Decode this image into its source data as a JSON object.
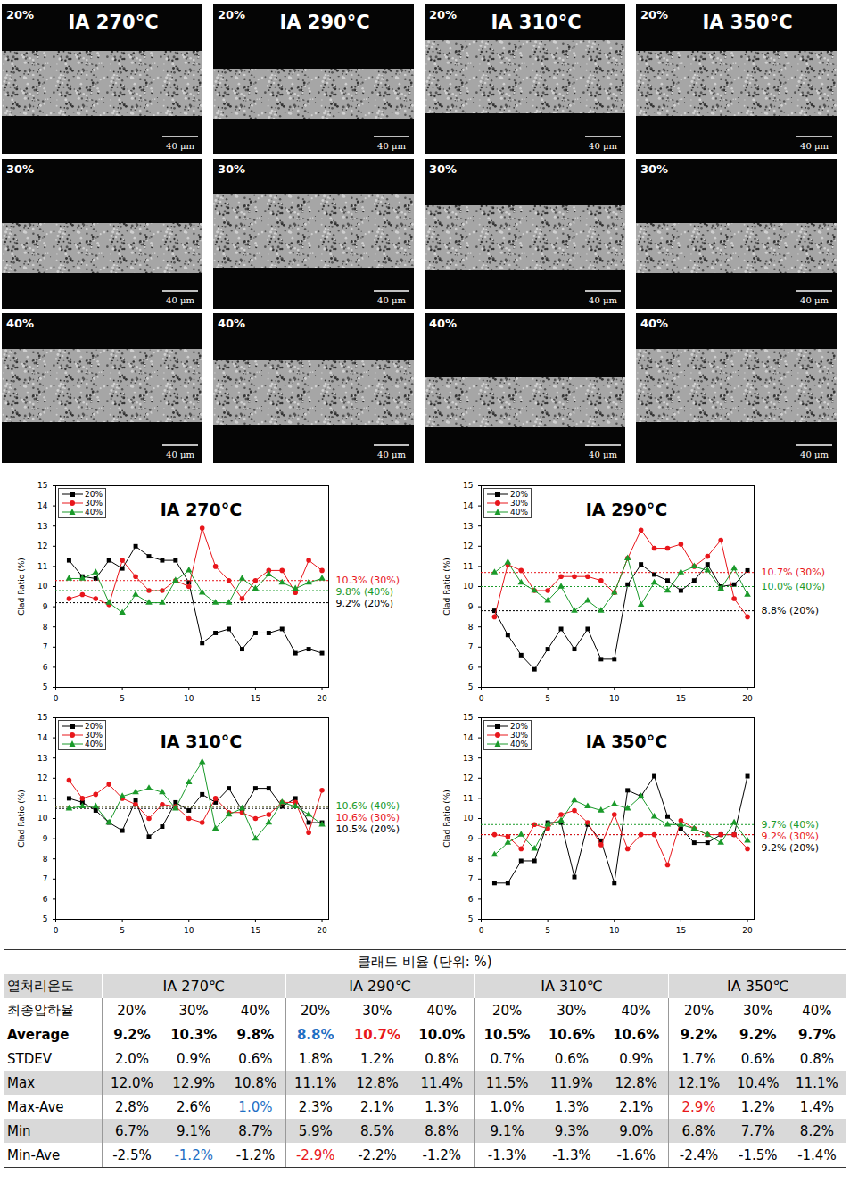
{
  "micrographs": {
    "columns": [
      {
        "title": "IA 270°C",
        "panels": [
          {
            "label": "20%",
            "scale_bar": "40 μm"
          },
          {
            "label": "30%",
            "scale_bar": "40 μm"
          },
          {
            "label": "40%",
            "scale_bar": "40 μm"
          }
        ]
      },
      {
        "title": "IA 290°C",
        "panels": [
          {
            "label": "20%",
            "scale_bar": "40 μm"
          },
          {
            "label": "30%",
            "scale_bar": "40 μm"
          },
          {
            "label": "40%",
            "scale_bar": "40 μm"
          }
        ]
      },
      {
        "title": "IA 310°C",
        "panels": [
          {
            "label": "20%",
            "scale_bar": "40 μm"
          },
          {
            "label": "30%",
            "scale_bar": "40 μm"
          },
          {
            "label": "40%",
            "scale_bar": "40 μm"
          }
        ]
      },
      {
        "title": "IA 350°C",
        "panels": [
          {
            "label": "20%",
            "scale_bar": "40 μm"
          },
          {
            "label": "30%",
            "scale_bar": "40 μm"
          },
          {
            "label": "40%",
            "scale_bar": "40 μm"
          }
        ]
      }
    ]
  },
  "chart_data": [
    {
      "type": "line",
      "title": "IA 270°C",
      "y_label": "Clad Ratio (%)",
      "legend": "top-left",
      "x": [
        1,
        2,
        3,
        4,
        5,
        6,
        7,
        8,
        9,
        10,
        11,
        12,
        13,
        14,
        15,
        16,
        17,
        18,
        19,
        20
      ],
      "xlim": [
        0,
        20.5
      ],
      "xticks": [
        0,
        5,
        10,
        15,
        20
      ],
      "ylim": [
        5,
        15
      ],
      "yticks": [
        5,
        6,
        7,
        8,
        9,
        10,
        11,
        12,
        13,
        14,
        15
      ],
      "series": [
        {
          "name": "20%",
          "color": "#000000",
          "marker": "square",
          "values": [
            11.3,
            10.5,
            10.4,
            11.3,
            10.9,
            12.0,
            11.5,
            11.3,
            11.3,
            10.2,
            7.2,
            7.7,
            7.9,
            6.9,
            7.7,
            7.7,
            7.9,
            6.7,
            6.9,
            6.7
          ],
          "average": 9.2,
          "average_label": "9.2% (20%)"
        },
        {
          "name": "30%",
          "color": "#e8161b",
          "marker": "circle",
          "values": [
            9.4,
            9.6,
            9.4,
            9.1,
            11.3,
            10.5,
            9.8,
            9.8,
            10.3,
            10.0,
            12.9,
            11.0,
            10.3,
            9.4,
            10.3,
            10.8,
            10.8,
            9.7,
            11.3,
            10.8
          ],
          "average": 10.3,
          "average_label": "10.3% (30%)"
        },
        {
          "name": "40%",
          "color": "#1a9a2a",
          "marker": "triangle",
          "values": [
            10.4,
            10.4,
            10.7,
            9.2,
            8.7,
            9.6,
            9.2,
            9.2,
            10.3,
            10.8,
            9.7,
            9.2,
            9.2,
            10.4,
            9.9,
            10.6,
            10.2,
            9.9,
            10.2,
            10.4
          ],
          "average": 9.8,
          "average_label": "9.8% (40%)"
        }
      ]
    },
    {
      "type": "line",
      "title": "IA 290°C",
      "y_label": "Clad Ratio (%)",
      "legend": "top-left",
      "x": [
        1,
        2,
        3,
        4,
        5,
        6,
        7,
        8,
        9,
        10,
        11,
        12,
        13,
        14,
        15,
        16,
        17,
        18,
        19,
        20
      ],
      "xlim": [
        0,
        20.5
      ],
      "xticks": [
        0,
        5,
        10,
        15,
        20
      ],
      "ylim": [
        5,
        15
      ],
      "yticks": [
        5,
        6,
        7,
        8,
        9,
        10,
        11,
        12,
        13,
        14,
        15
      ],
      "series": [
        {
          "name": "20%",
          "color": "#000000",
          "marker": "square",
          "values": [
            8.8,
            7.6,
            6.6,
            5.9,
            6.9,
            7.9,
            6.9,
            7.9,
            6.4,
            6.4,
            10.1,
            11.1,
            10.6,
            10.3,
            9.8,
            10.3,
            11.1,
            10.0,
            10.1,
            10.8
          ],
          "average": 8.8,
          "average_label": "8.8% (20%)"
        },
        {
          "name": "30%",
          "color": "#e8161b",
          "marker": "circle",
          "values": [
            8.5,
            11.1,
            10.8,
            9.8,
            9.8,
            10.5,
            10.5,
            10.5,
            10.3,
            9.7,
            11.4,
            12.8,
            11.9,
            11.9,
            12.1,
            11.0,
            11.5,
            12.3,
            9.4,
            8.5
          ],
          "average": 10.7,
          "average_label": "10.7% (30%)"
        },
        {
          "name": "40%",
          "color": "#1a9a2a",
          "marker": "triangle",
          "values": [
            10.7,
            11.2,
            10.2,
            9.8,
            9.3,
            10.0,
            8.8,
            9.3,
            8.8,
            9.7,
            11.4,
            9.1,
            10.2,
            9.8,
            10.7,
            11.0,
            10.8,
            9.9,
            10.9,
            9.6
          ],
          "average": 10.0,
          "average_label": "10.0% (40%)"
        }
      ]
    },
    {
      "type": "line",
      "title": "IA 310°C",
      "y_label": "Clad Ratio (%)",
      "legend": "top-left",
      "x": [
        1,
        2,
        3,
        4,
        5,
        6,
        7,
        8,
        9,
        10,
        11,
        12,
        13,
        14,
        15,
        16,
        17,
        18,
        19,
        20
      ],
      "xlim": [
        0,
        20.5
      ],
      "xticks": [
        0,
        5,
        10,
        15,
        20
      ],
      "ylim": [
        5,
        15
      ],
      "yticks": [
        5,
        6,
        7,
        8,
        9,
        10,
        11,
        12,
        13,
        14,
        15
      ],
      "series": [
        {
          "name": "20%",
          "color": "#000000",
          "marker": "square",
          "values": [
            11.0,
            10.8,
            10.4,
            9.8,
            9.4,
            10.9,
            9.1,
            9.6,
            10.8,
            10.4,
            11.2,
            10.8,
            11.5,
            10.4,
            11.5,
            11.5,
            10.6,
            11.0,
            9.8,
            9.8
          ],
          "average": 10.5,
          "average_label": "10.5% (20%)"
        },
        {
          "name": "30%",
          "color": "#e8161b",
          "marker": "circle",
          "values": [
            11.9,
            11.0,
            11.2,
            11.7,
            11.0,
            10.7,
            10.0,
            10.7,
            10.6,
            10.0,
            9.8,
            11.0,
            10.3,
            10.3,
            10.0,
            10.2,
            10.8,
            10.8,
            9.3,
            11.4
          ],
          "average": 10.6,
          "average_label": "10.6% (30%)"
        },
        {
          "name": "40%",
          "color": "#1a9a2a",
          "marker": "triangle",
          "values": [
            10.5,
            10.6,
            10.6,
            9.8,
            11.1,
            11.3,
            11.5,
            11.3,
            10.5,
            11.8,
            12.8,
            9.5,
            10.2,
            10.5,
            9.0,
            9.8,
            10.8,
            10.6,
            10.2,
            9.7
          ],
          "average": 10.6,
          "average_label": "10.6% (40%)"
        }
      ]
    },
    {
      "type": "line",
      "title": "IA 350°C",
      "y_label": "Clad Ratio (%)",
      "legend": "top-left",
      "x": [
        1,
        2,
        3,
        4,
        5,
        6,
        7,
        8,
        9,
        10,
        11,
        12,
        13,
        14,
        15,
        16,
        17,
        18,
        19,
        20
      ],
      "xlim": [
        0,
        20.5
      ],
      "xticks": [
        0,
        5,
        10,
        15,
        20
      ],
      "ylim": [
        5,
        15
      ],
      "yticks": [
        5,
        6,
        7,
        8,
        9,
        10,
        11,
        12,
        13,
        14,
        15
      ],
      "series": [
        {
          "name": "20%",
          "color": "#000000",
          "marker": "square",
          "values": [
            6.8,
            6.8,
            7.9,
            7.9,
            9.8,
            9.8,
            7.1,
            9.7,
            8.9,
            6.8,
            11.4,
            11.1,
            12.1,
            10.1,
            9.5,
            8.8,
            8.8,
            9.2,
            9.2,
            12.1
          ],
          "average": 9.2,
          "average_label": "9.2% (20%)"
        },
        {
          "name": "30%",
          "color": "#e8161b",
          "marker": "circle",
          "values": [
            9.2,
            9.1,
            8.5,
            9.7,
            9.5,
            10.2,
            10.4,
            9.8,
            8.7,
            10.2,
            8.5,
            9.2,
            9.2,
            7.7,
            9.9,
            9.5,
            9.2,
            9.2,
            9.2,
            8.5
          ],
          "average": 9.2,
          "average_label": "9.2% (30%)"
        },
        {
          "name": "40%",
          "color": "#1a9a2a",
          "marker": "triangle",
          "values": [
            8.2,
            8.8,
            9.2,
            8.5,
            9.7,
            9.9,
            10.9,
            10.6,
            10.4,
            10.7,
            10.5,
            11.1,
            10.1,
            9.7,
            9.7,
            9.5,
            9.2,
            8.8,
            9.8,
            8.9
          ],
          "average": 9.7,
          "average_label": "9.7% (40%)"
        }
      ]
    }
  ],
  "table": {
    "title": "클래드 비율 (단위: %)",
    "header": [
      [
        "열처리온도",
        "IA 270℃",
        "IA 290℃",
        "IA 310℃",
        "IA 350℃"
      ],
      [
        "최종압하율",
        "20%",
        "30%",
        "40%",
        "20%",
        "30%",
        "40%",
        "20%",
        "30%",
        "40%",
        "20%",
        "30%",
        "40%"
      ]
    ],
    "rows": [
      [
        "Average",
        "9.2%",
        "10.3%",
        "9.8%",
        {
          "text": "8.8%",
          "color": "#1f6fc4"
        },
        {
          "text": "10.7%",
          "color": "#e8161b"
        },
        "10.0%",
        "10.5%",
        "10.6%",
        "10.6%",
        "9.2%",
        "9.2%",
        "9.7%"
      ],
      [
        "STDEV",
        "2.0%",
        "0.9%",
        "0.6%",
        "1.8%",
        "1.2%",
        "0.8%",
        "0.7%",
        "0.6%",
        "0.9%",
        "1.7%",
        "0.6%",
        "0.8%"
      ],
      [
        "Max",
        "12.0%",
        "12.9%",
        "10.8%",
        "11.1%",
        "12.8%",
        "11.4%",
        "11.5%",
        "11.9%",
        "12.8%",
        "12.1%",
        "10.4%",
        "11.1%"
      ],
      [
        "Max-Ave",
        "2.8%",
        "2.6%",
        {
          "text": "1.0%",
          "color": "#1f6fc4"
        },
        "2.3%",
        "2.1%",
        "1.3%",
        "1.0%",
        "1.3%",
        "2.1%",
        {
          "text": "2.9%",
          "color": "#e8161b"
        },
        "1.2%",
        "1.4%"
      ],
      [
        "Min",
        "6.7%",
        "9.1%",
        "8.7%",
        "5.9%",
        "8.5%",
        "8.8%",
        "9.1%",
        "9.3%",
        "9.0%",
        "6.8%",
        "7.7%",
        "8.2%"
      ],
      [
        "Min-Ave",
        "-2.5%",
        {
          "text": "-1.2%",
          "color": "#1f6fc4"
        },
        "-1.2%",
        {
          "text": "-2.9%",
          "color": "#e8161b"
        },
        "-2.2%",
        "-1.2%",
        "-1.3%",
        "-1.3%",
        "-1.6%",
        "-2.4%",
        "-1.5%",
        "-1.4%"
      ]
    ]
  }
}
